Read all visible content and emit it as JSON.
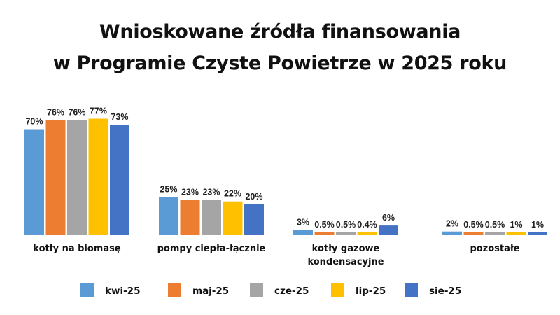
{
  "chart_data": {
    "type": "bar",
    "title_lines": [
      "Wnioskowane źródła finansowania",
      "w Programie Czyste Powietrze w 2025 roku"
    ],
    "categories": [
      [
        "kotły na biomasę"
      ],
      [
        "pompy ciepła-łącznie"
      ],
      [
        "kotły gazowe",
        "kondensacyjne"
      ],
      [
        "pozostałe"
      ]
    ],
    "series": [
      {
        "name": "kwi-25",
        "color": "#5B9BD5",
        "values": [
          70,
          25,
          3,
          2
        ],
        "labels": [
          "70%",
          "25%",
          "3%",
          "2%"
        ]
      },
      {
        "name": "maj-25",
        "color": "#ED7D31",
        "values": [
          76,
          23,
          0.5,
          0.5
        ],
        "labels": [
          "76%",
          "23%",
          "0.5%",
          "0.5%"
        ]
      },
      {
        "name": "cze-25",
        "color": "#A5A5A5",
        "values": [
          76,
          23,
          0.5,
          0.5
        ],
        "labels": [
          "76%",
          "23%",
          "0.5%",
          "0.5%"
        ]
      },
      {
        "name": "lip-25",
        "color": "#FFC000",
        "values": [
          77,
          22,
          0.4,
          1
        ],
        "labels": [
          "77%",
          "22%",
          "0.4%",
          "1%"
        ]
      },
      {
        "name": "sie-25",
        "color": "#4472C4",
        "values": [
          73,
          20,
          6,
          1
        ],
        "labels": [
          "73%",
          "20%",
          "6%",
          "1%"
        ]
      }
    ],
    "ylim": [
      0,
      100
    ],
    "grid": false,
    "legend": "bottom"
  }
}
